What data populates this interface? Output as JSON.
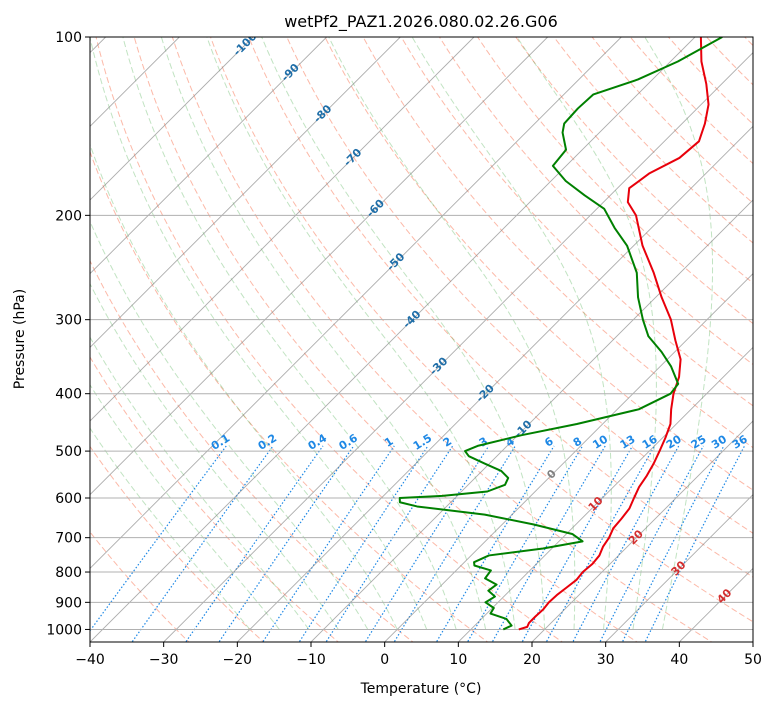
{
  "chart_data": {
    "type": "line",
    "diagram": "skew-t log-p",
    "title": "wetPf2_PAZ1.2026.080.02.26.G06",
    "xlabel": "Temperature (°C)",
    "ylabel": "Pressure (hPa)",
    "xlim": [
      -40,
      50
    ],
    "ylim": [
      1050,
      100
    ],
    "x_ticks": [
      -40,
      -30,
      -20,
      -10,
      0,
      10,
      20,
      30,
      40,
      50
    ],
    "x_tick_labels": [
      "−40",
      "−30",
      "−20",
      "−10",
      "0",
      "10",
      "20",
      "30",
      "40",
      "50"
    ],
    "y_ticks": [
      1000,
      900,
      800,
      700,
      600,
      500,
      400,
      300,
      200,
      100
    ],
    "y_tick_labels": [
      "1000",
      "900",
      "800",
      "700",
      "600",
      "500",
      "400",
      "300",
      "200",
      "100"
    ],
    "grid": true,
    "colors": {
      "temperature": "#e8000b",
      "dewpoint": "#008000",
      "isotherm": "#808080",
      "dry_adiabat": "#fa8060",
      "moist_adiabat": "#4caf50",
      "mixing_ratio": "#1e88e5"
    },
    "series": [
      {
        "name": "Temperature",
        "color": "#e8000b",
        "points": [
          {
            "p": 1000,
            "t": 16.5
          },
          {
            "p": 990,
            "t": 17.3
          },
          {
            "p": 975,
            "t": 17.0
          },
          {
            "p": 950,
            "t": 17.0
          },
          {
            "p": 925,
            "t": 17.1
          },
          {
            "p": 900,
            "t": 16.9
          },
          {
            "p": 875,
            "t": 17.0
          },
          {
            "p": 850,
            "t": 17.3
          },
          {
            "p": 825,
            "t": 17.6
          },
          {
            "p": 800,
            "t": 17.4
          },
          {
            "p": 775,
            "t": 17.6
          },
          {
            "p": 750,
            "t": 17.4
          },
          {
            "p": 725,
            "t": 16.7
          },
          {
            "p": 700,
            "t": 16.3
          },
          {
            "p": 675,
            "t": 15.6
          },
          {
            "p": 650,
            "t": 15.4
          },
          {
            "p": 625,
            "t": 15.1
          },
          {
            "p": 600,
            "t": 14.3
          },
          {
            "p": 575,
            "t": 13.5
          },
          {
            "p": 550,
            "t": 13.0
          },
          {
            "p": 525,
            "t": 12.3
          },
          {
            "p": 500,
            "t": 11.4
          },
          {
            "p": 475,
            "t": 10.4
          },
          {
            "p": 450,
            "t": 9.2
          },
          {
            "p": 425,
            "t": 7.3
          },
          {
            "p": 400,
            "t": 5.5
          },
          {
            "p": 375,
            "t": 4.0
          },
          {
            "p": 350,
            "t": 1.8
          },
          {
            "p": 325,
            "t": -1.5
          },
          {
            "p": 300,
            "t": -4.9
          },
          {
            "p": 275,
            "t": -9.2
          },
          {
            "p": 250,
            "t": -13.6
          },
          {
            "p": 225,
            "t": -18.8
          },
          {
            "p": 200,
            "t": -23.8
          },
          {
            "p": 190,
            "t": -26.7
          },
          {
            "p": 180,
            "t": -28.4
          },
          {
            "p": 170,
            "t": -27.7
          },
          {
            "p": 160,
            "t": -25.7
          },
          {
            "p": 150,
            "t": -25.3
          },
          {
            "p": 140,
            "t": -26.9
          },
          {
            "p": 130,
            "t": -29.0
          },
          {
            "p": 120,
            "t": -32.1
          },
          {
            "p": 110,
            "t": -35.8
          },
          {
            "p": 100,
            "t": -39.2
          }
        ]
      },
      {
        "name": "Dewpoint",
        "color": "#008000",
        "points": [
          {
            "p": 1000,
            "t": 14.4
          },
          {
            "p": 985,
            "t": 15.0
          },
          {
            "p": 960,
            "t": 13.4
          },
          {
            "p": 940,
            "t": 10.5
          },
          {
            "p": 920,
            "t": 10.2
          },
          {
            "p": 900,
            "t": 8.3
          },
          {
            "p": 880,
            "t": 8.8
          },
          {
            "p": 860,
            "t": 7.1
          },
          {
            "p": 840,
            "t": 7.4
          },
          {
            "p": 820,
            "t": 5.0
          },
          {
            "p": 795,
            "t": 4.7
          },
          {
            "p": 780,
            "t": 1.8
          },
          {
            "p": 770,
            "t": 1.3
          },
          {
            "p": 750,
            "t": 2.4
          },
          {
            "p": 730,
            "t": 8.8
          },
          {
            "p": 710,
            "t": 13.2
          },
          {
            "p": 690,
            "t": 10.8
          },
          {
            "p": 665,
            "t": 4.3
          },
          {
            "p": 640,
            "t": -3.7
          },
          {
            "p": 620,
            "t": -14.0
          },
          {
            "p": 610,
            "t": -16.9
          },
          {
            "p": 600,
            "t": -17.5
          },
          {
            "p": 595,
            "t": -12.0
          },
          {
            "p": 585,
            "t": -6.5
          },
          {
            "p": 570,
            "t": -5.0
          },
          {
            "p": 555,
            "t": -5.5
          },
          {
            "p": 540,
            "t": -7.4
          },
          {
            "p": 525,
            "t": -10.6
          },
          {
            "p": 510,
            "t": -13.8
          },
          {
            "p": 500,
            "t": -15.0
          },
          {
            "p": 490,
            "t": -14.0
          },
          {
            "p": 470,
            "t": -9.5
          },
          {
            "p": 450,
            "t": -3.5
          },
          {
            "p": 425,
            "t": 2.9
          },
          {
            "p": 400,
            "t": 5.1
          },
          {
            "p": 385,
            "t": 4.8
          },
          {
            "p": 360,
            "t": 1.5
          },
          {
            "p": 340,
            "t": -1.8
          },
          {
            "p": 320,
            "t": -5.7
          },
          {
            "p": 300,
            "t": -8.7
          },
          {
            "p": 275,
            "t": -12.4
          },
          {
            "p": 250,
            "t": -15.9
          },
          {
            "p": 225,
            "t": -20.9
          },
          {
            "p": 210,
            "t": -25.0
          },
          {
            "p": 195,
            "t": -29.0
          },
          {
            "p": 185,
            "t": -33.5
          },
          {
            "p": 175,
            "t": -38.0
          },
          {
            "p": 165,
            "t": -41.8
          },
          {
            "p": 155,
            "t": -42.2
          },
          {
            "p": 145,
            "t": -45.0
          },
          {
            "p": 140,
            "t": -46.0
          },
          {
            "p": 132,
            "t": -46.2
          },
          {
            "p": 125,
            "t": -46.0
          },
          {
            "p": 118,
            "t": -42.0
          },
          {
            "p": 110,
            "t": -39.0
          },
          {
            "p": 100,
            "t": -36.3
          }
        ]
      }
    ],
    "isotherm_labels": [
      {
        "t": -100,
        "text": "-100"
      },
      {
        "t": -90,
        "text": "-90"
      },
      {
        "t": -80,
        "text": "-80"
      },
      {
        "t": -70,
        "text": "-70"
      },
      {
        "t": -60,
        "text": "-60"
      },
      {
        "t": -50,
        "text": "-50"
      },
      {
        "t": -40,
        "text": "-40"
      },
      {
        "t": -30,
        "text": "-30"
      },
      {
        "t": -20,
        "text": "-20"
      },
      {
        "t": -10,
        "text": "-10"
      },
      {
        "t": 0,
        "text": "0"
      },
      {
        "t": 10,
        "text": "10"
      },
      {
        "t": 20,
        "text": "20"
      },
      {
        "t": 30,
        "text": "30"
      },
      {
        "t": 40,
        "text": "40"
      }
    ],
    "mixing_ratio_lines": [
      {
        "w": 0.1,
        "text": "0.1"
      },
      {
        "w": 0.2,
        "text": "0.2"
      },
      {
        "w": 0.4,
        "text": "0.4"
      },
      {
        "w": 0.6,
        "text": "0.6"
      },
      {
        "w": 1,
        "text": "1"
      },
      {
        "w": 1.5,
        "text": "1.5"
      },
      {
        "w": 2,
        "text": "2"
      },
      {
        "w": 3,
        "text": "3"
      },
      {
        "w": 4,
        "text": "4"
      },
      {
        "w": 6,
        "text": "6"
      },
      {
        "w": 8,
        "text": "8"
      },
      {
        "w": 10,
        "text": "10"
      },
      {
        "w": 13,
        "text": "13"
      },
      {
        "w": 16,
        "text": "16"
      },
      {
        "w": 20,
        "text": "20"
      },
      {
        "w": 25,
        "text": "25"
      },
      {
        "w": 30,
        "text": "30"
      },
      {
        "w": 36,
        "text": "36"
      }
    ]
  }
}
